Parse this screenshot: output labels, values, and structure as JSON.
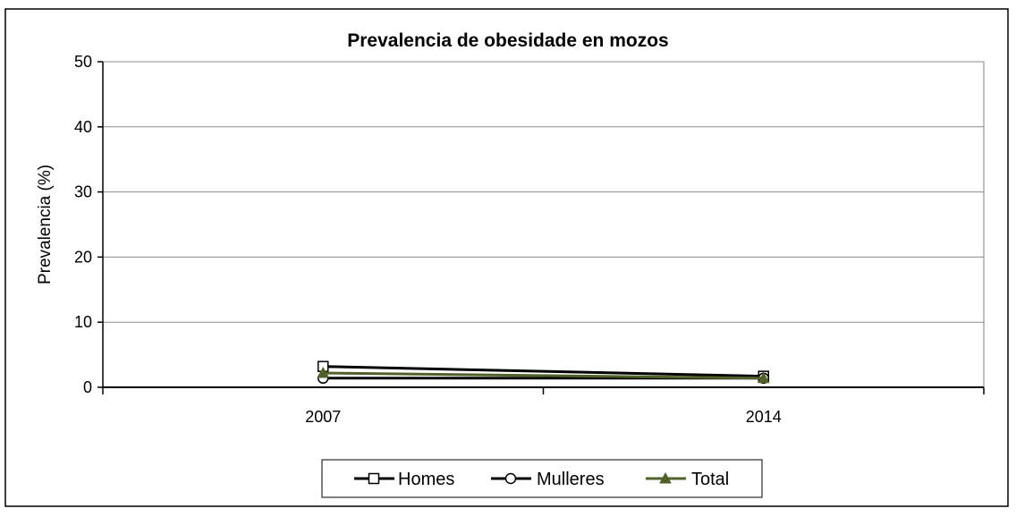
{
  "chart_data": {
    "type": "line",
    "title": "Prevalencia de obesidade en mozos",
    "xlabel": "",
    "ylabel": "Prevalencia (%)",
    "categories": [
      "2007",
      "2014"
    ],
    "ylim": [
      0,
      50
    ],
    "yticks": [
      0,
      10,
      20,
      30,
      40,
      50
    ],
    "grid": true,
    "legend_position": "bottom",
    "series": [
      {
        "name": "Homes",
        "values": [
          3.2,
          1.7
        ],
        "color": "#000000",
        "marker": "square"
      },
      {
        "name": "Mulleres",
        "values": [
          1.4,
          1.4
        ],
        "color": "#000000",
        "marker": "circle"
      },
      {
        "name": "Total",
        "values": [
          2.2,
          1.4
        ],
        "color": "#4f6228",
        "marker": "triangle"
      }
    ]
  }
}
